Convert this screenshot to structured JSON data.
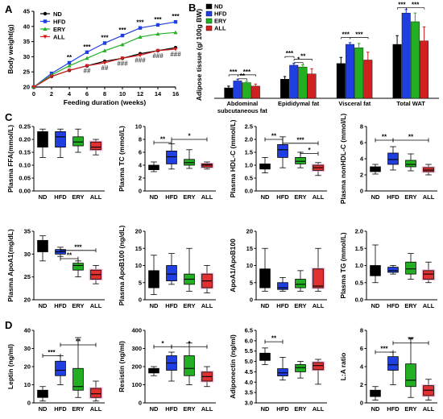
{
  "panels": {
    "A": "A",
    "B": "B",
    "C": "C",
    "D": "D"
  },
  "colors": {
    "ND": "#000000",
    "HFD": "#1f3fe0",
    "ERY": "#22b022",
    "ALL": "#d02020",
    "ALL_box": "#e03030",
    "ALL_box_fill_highlight": "#f2a0c8"
  },
  "legend": [
    "ND",
    "HFD",
    "ERY",
    "ALL"
  ],
  "chart_data": [
    {
      "id": "A",
      "type": "line",
      "xlabel": "Feeding duration (weeks)",
      "ylabel": "Body weight(g)",
      "x": [
        0,
        2,
        4,
        6,
        8,
        10,
        12,
        14,
        16
      ],
      "xticks": [
        "0",
        "2",
        "4",
        "6",
        "8",
        "10",
        "12",
        "14",
        "16"
      ],
      "yticks": [
        "20",
        "25",
        "30",
        "35",
        "40",
        "45"
      ],
      "xlim": [
        0,
        16
      ],
      "ylim": [
        20,
        45
      ],
      "legend_position": "top-left",
      "series": [
        {
          "name": "ND",
          "values": [
            20,
            23.5,
            25.5,
            27,
            28.5,
            29.5,
            31,
            32,
            33
          ]
        },
        {
          "name": "HFD",
          "values": [
            20,
            24.5,
            28,
            31.5,
            34.5,
            37,
            39.5,
            40.5,
            41.5
          ]
        },
        {
          "name": "ERY",
          "values": [
            20,
            24,
            27,
            29.5,
            32,
            34,
            36.5,
            37.5,
            38
          ]
        },
        {
          "name": "ALL",
          "values": [
            20,
            23.5,
            25.5,
            27,
            28,
            29.5,
            30.5,
            32,
            32.5
          ]
        }
      ],
      "annotations_top": [
        "**",
        "***",
        "***",
        "***",
        "***",
        "***",
        "***"
      ],
      "annotations_bottom": [
        "##",
        "##",
        "###",
        "###",
        "###",
        "###"
      ]
    },
    {
      "id": "B",
      "type": "bar",
      "ylabel": "Adipose tissue (g/ 100g BW)",
      "ylim": [
        0,
        5
      ],
      "categories": [
        "Abdominal subcutaneous fat",
        "Epididymal fat",
        "Visceral fat",
        "Total WAT"
      ],
      "category_lines": [
        [
          "Abdominal",
          "subcutaneous fat"
        ],
        [
          "Epididymal fat"
        ],
        [
          "Visceral fat"
        ],
        [
          "Total WAT"
        ]
      ],
      "series": [
        {
          "name": "ND",
          "values": [
            0.6,
            1.1,
            2.0,
            3.1
          ]
        },
        {
          "name": "HFD",
          "values": [
            1.0,
            1.9,
            3.1,
            4.9
          ]
        },
        {
          "name": "ERY",
          "values": [
            0.9,
            1.8,
            2.9,
            4.4
          ]
        },
        {
          "name": "ALL",
          "values": [
            0.7,
            1.4,
            2.2,
            3.3
          ]
        }
      ],
      "errors": [
        [
          0.1,
          0.15,
          0.35,
          0.5
        ],
        [
          0.1,
          0.1,
          0.1,
          0.2
        ],
        [
          0.08,
          0.12,
          0.25,
          0.5
        ],
        [
          0.12,
          0.3,
          0.45,
          0.8
        ]
      ],
      "brackets": [
        {
          "group": 0,
          "from": 0,
          "to": 1,
          "label": "***",
          "y": 1.35
        },
        {
          "group": 0,
          "from": 1,
          "to": 3,
          "label": "***",
          "y": 1.35
        },
        {
          "group": 0,
          "from": 1,
          "to": 2,
          "label": "**",
          "y": 1.12
        },
        {
          "group": 1,
          "from": 0,
          "to": 1,
          "label": "***",
          "y": 2.4
        },
        {
          "group": 1,
          "from": 1,
          "to": 3,
          "label": "**",
          "y": 2.25
        },
        {
          "group": 1,
          "from": 1,
          "to": 2,
          "label": "*",
          "y": 2.05
        },
        {
          "group": 2,
          "from": 0,
          "to": 1,
          "label": "***",
          "y": 3.5
        },
        {
          "group": 2,
          "from": 1,
          "to": 3,
          "label": "***",
          "y": 3.5
        },
        {
          "group": 3,
          "from": 0,
          "to": 1,
          "label": "***",
          "y": 5.2
        },
        {
          "group": 3,
          "from": 1,
          "to": 3,
          "label": "***",
          "y": 5.2
        }
      ],
      "legend_position": "top-left"
    },
    {
      "id": "C1",
      "type": "box",
      "ylabel": "Plasma FFA(mmol/L)",
      "yticks": [
        "0.00",
        "0.05",
        "0.10",
        "0.15",
        "0.20",
        "0.25"
      ],
      "ylim": [
        0,
        0.25
      ],
      "categories": [
        "ND",
        "HFD",
        "ERY",
        "ALL"
      ],
      "boxes": [
        [
          0.13,
          0.17,
          0.21,
          0.23,
          0.24
        ],
        [
          0.13,
          0.17,
          0.21,
          0.23,
          0.24
        ],
        [
          0.15,
          0.175,
          0.19,
          0.21,
          0.24
        ],
        [
          0.14,
          0.16,
          0.17,
          0.19,
          0.2
        ]
      ],
      "brackets": []
    },
    {
      "id": "C2",
      "type": "box",
      "ylabel": "Plasma  TC (mmol/L)",
      "yticks": [
        "0",
        "2",
        "4",
        "6",
        "8",
        "10"
      ],
      "ylim": [
        0,
        10
      ],
      "categories": [
        "ND",
        "HFD",
        "ERY",
        "ALL"
      ],
      "boxes": [
        [
          3.0,
          3.3,
          3.6,
          4.0,
          4.5
        ],
        [
          3.4,
          4.2,
          5.3,
          6.2,
          7.3
        ],
        [
          3.5,
          4.0,
          4.4,
          4.9,
          6.4
        ],
        [
          3.4,
          3.7,
          4.0,
          4.2,
          4.5
        ]
      ],
      "brackets": [
        {
          "from": 0,
          "to": 1,
          "label": "**",
          "y": 7.5
        },
        {
          "from": 1,
          "to": 3,
          "label": "*",
          "y": 8.0
        }
      ]
    },
    {
      "id": "C3",
      "type": "box",
      "ylabel": "Plasma HDL-C (mmol/L)",
      "yticks": [
        "0.0",
        "0.5",
        "1.0",
        "1.5",
        "2.0",
        "2.5"
      ],
      "ylim": [
        0,
        2.5
      ],
      "categories": [
        "ND",
        "HFD",
        "ERY",
        "ALL"
      ],
      "boxes": [
        [
          0.7,
          0.85,
          0.95,
          1.05,
          1.3
        ],
        [
          0.9,
          1.3,
          1.6,
          1.8,
          2.1
        ],
        [
          0.9,
          1.05,
          1.15,
          1.3,
          1.5
        ],
        [
          0.6,
          0.8,
          0.9,
          1.0,
          1.1
        ]
      ],
      "brackets": [
        {
          "from": 0,
          "to": 1,
          "label": "**",
          "y": 2.0
        },
        {
          "from": 1,
          "to": 3,
          "label": "***",
          "y": 1.85
        },
        {
          "from": 2,
          "to": 3,
          "label": "*",
          "y": 1.45
        }
      ]
    },
    {
      "id": "C4",
      "type": "box",
      "ylabel": "Plasma nonHDL-C (mmol/L)",
      "yticks": [
        "0",
        "2",
        "4",
        "6",
        "8"
      ],
      "ylim": [
        0,
        8
      ],
      "categories": [
        "ND",
        "HFD",
        "ERY",
        "ALL"
      ],
      "boxes": [
        [
          2.1,
          2.4,
          2.6,
          3.0,
          3.3
        ],
        [
          2.6,
          3.3,
          3.9,
          4.7,
          5.5
        ],
        [
          2.5,
          3.0,
          3.3,
          3.8,
          4.6
        ],
        [
          2.0,
          2.4,
          2.6,
          2.9,
          3.3
        ]
      ],
      "brackets": [
        {
          "from": 0,
          "to": 1,
          "label": "**",
          "y": 6.3
        },
        {
          "from": 1,
          "to": 3,
          "label": "**",
          "y": 6.3
        }
      ]
    },
    {
      "id": "C5",
      "type": "box",
      "ylabel": "Plasma ApoA1(mg/dL)",
      "yticks": [
        "20",
        "25",
        "30",
        "35"
      ],
      "ylim": [
        20,
        35
      ],
      "categories": [
        "ND",
        "HFD",
        "ERY",
        "ALL"
      ],
      "boxes": [
        [
          28.5,
          30.5,
          32,
          33,
          34
        ],
        [
          29.5,
          30,
          30.5,
          31,
          31.5
        ],
        [
          25,
          26.5,
          27.5,
          28,
          28.5
        ],
        [
          23.5,
          24.5,
          25.5,
          26.5,
          27.5
        ]
      ],
      "brackets": [
        {
          "from": 1,
          "to": 2,
          "label": "**",
          "y": 29.0
        },
        {
          "from": 1,
          "to": 3,
          "label": "***",
          "y": 30.8
        }
      ]
    },
    {
      "id": "C6",
      "type": "box",
      "ylabel": "Plasma ApoB100 (ng/dL)",
      "yticks": [
        "0",
        "5",
        "10",
        "15",
        "20"
      ],
      "ylim": [
        0,
        20
      ],
      "categories": [
        "ND",
        "HFD",
        "ERY",
        "ALL"
      ],
      "boxes": [
        [
          1.5,
          3.5,
          5.5,
          8.5,
          13
        ],
        [
          4.5,
          5.5,
          7.5,
          10,
          13.5
        ],
        [
          2.5,
          4.5,
          6,
          7.5,
          15
        ],
        [
          2,
          3.5,
          5.5,
          7.5,
          10
        ]
      ],
      "brackets": []
    },
    {
      "id": "C7",
      "type": "box",
      "ylabel": "ApoA1/ApoB100",
      "yticks": [
        "0",
        "5",
        "10",
        "15",
        "20"
      ],
      "ylim": [
        0,
        20
      ],
      "categories": [
        "ND",
        "HFD",
        "ERY",
        "ALL"
      ],
      "boxes": [
        [
          2.5,
          3.5,
          5,
          9,
          15
        ],
        [
          2.5,
          3,
          3.5,
          5,
          6.5
        ],
        [
          2.5,
          3.5,
          4.5,
          6,
          8.5
        ],
        [
          2.5,
          3.5,
          4,
          9,
          15
        ]
      ],
      "brackets": []
    },
    {
      "id": "C8",
      "type": "box",
      "ylabel": "Plasma TG (mmol/L)",
      "yticks": [
        "0.0",
        "0.5",
        "1.0",
        "1.5",
        "2.0"
      ],
      "ylim": [
        0,
        2.0
      ],
      "categories": [
        "ND",
        "HFD",
        "ERY",
        "ALL"
      ],
      "boxes": [
        [
          0.5,
          0.7,
          0.85,
          1.0,
          1.6
        ],
        [
          0.75,
          0.8,
          0.85,
          0.95,
          1.0
        ],
        [
          0.6,
          0.75,
          0.9,
          1.1,
          1.35
        ],
        [
          0.5,
          0.6,
          0.75,
          0.85,
          1.1
        ]
      ],
      "brackets": []
    },
    {
      "id": "D1",
      "type": "box",
      "ylabel": "Leptin (ng/ml)",
      "yticks": [
        "0",
        "10",
        "20",
        "30",
        "40"
      ],
      "ylim": [
        0,
        40
      ],
      "categories": [
        "ND",
        "HFD",
        "ERY",
        "ALL"
      ],
      "boxes": [
        [
          1,
          3,
          5,
          7,
          9
        ],
        [
          10,
          15,
          18,
          23,
          26
        ],
        [
          3,
          7,
          9,
          19,
          36
        ],
        [
          1,
          3,
          5,
          8,
          12
        ]
      ],
      "brackets": [
        {
          "from": 0,
          "to": 1,
          "label": "***",
          "y": 26
        },
        {
          "from": 1,
          "to": 3,
          "label": "**",
          "y": 32
        }
      ]
    },
    {
      "id": "D2",
      "type": "box",
      "ylabel": "Resistin (ng/ml)",
      "yticks": [
        "0",
        "100",
        "200",
        "300",
        "400"
      ],
      "ylim": [
        0,
        400
      ],
      "categories": [
        "ND",
        "HFD",
        "ERY",
        "ALL"
      ],
      "boxes": [
        [
          150,
          165,
          175,
          190,
          200
        ],
        [
          120,
          180,
          220,
          260,
          280
        ],
        [
          100,
          150,
          190,
          260,
          330
        ],
        [
          90,
          120,
          145,
          170,
          200
        ]
      ],
      "brackets": [
        {
          "from": 0,
          "to": 1,
          "label": "*",
          "y": 310
        },
        {
          "from": 1,
          "to": 3,
          "label": "*",
          "y": 310
        }
      ]
    },
    {
      "id": "D3",
      "type": "box",
      "ylabel": "Adiponectin (ng/ml)",
      "yticks": [
        "3.0",
        "3.5",
        "4.0",
        "4.5",
        "5.0",
        "5.5",
        "6.0",
        "6.5"
      ],
      "ylim": [
        3.0,
        6.5
      ],
      "categories": [
        "ND",
        "HFD",
        "ERY",
        "ALL"
      ],
      "boxes": [
        [
          4.85,
          5.05,
          5.25,
          5.4,
          5.65
        ],
        [
          4.1,
          4.3,
          4.45,
          4.65,
          5.2
        ],
        [
          4.2,
          4.5,
          4.7,
          4.85,
          5.0
        ],
        [
          3.9,
          4.6,
          4.8,
          4.95,
          5.1
        ]
      ],
      "brackets": [
        {
          "from": 0,
          "to": 1,
          "label": "**",
          "y": 5.95
        }
      ]
    },
    {
      "id": "D4",
      "type": "box",
      "ylabel": "L:A ratio",
      "yticks": [
        "0",
        "2",
        "4",
        "6",
        "8"
      ],
      "ylim": [
        0,
        8
      ],
      "categories": [
        "ND",
        "HFD",
        "ERY",
        "ALL"
      ],
      "boxes": [
        [
          0.3,
          0.7,
          1.0,
          1.4,
          1.8
        ],
        [
          2.0,
          3.6,
          4.2,
          5.1,
          5.6
        ],
        [
          0.6,
          1.8,
          2.5,
          4.3,
          7.2
        ],
        [
          0.3,
          0.8,
          1.4,
          1.9,
          2.6
        ]
      ],
      "brackets": [
        {
          "from": 0,
          "to": 1,
          "label": "***",
          "y": 5.6
        },
        {
          "from": 1,
          "to": 3,
          "label": "**",
          "y": 6.6
        }
      ]
    }
  ]
}
